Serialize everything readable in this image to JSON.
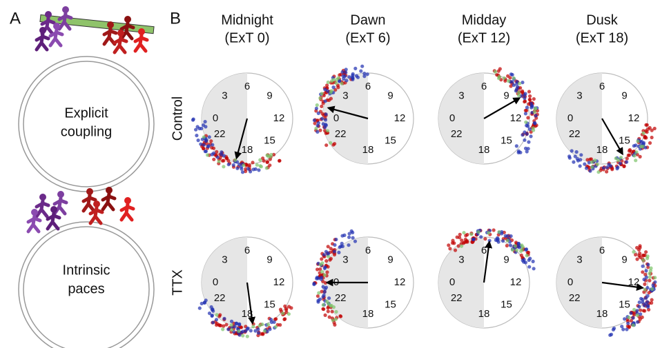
{
  "panel_a": {
    "label": "A",
    "top_lines": [
      "Explicit",
      "coupling"
    ],
    "bottom_lines": [
      "Intrinsic",
      "paces"
    ]
  },
  "panel_b": {
    "label": "B",
    "columns": [
      {
        "line1": "Midnight",
        "line2": "(ExT 0)"
      },
      {
        "line1": "Dawn",
        "line2": "(ExT 6)"
      },
      {
        "line1": "Midday",
        "line2": "(ExT 12)"
      },
      {
        "line1": "Dusk",
        "line2": "(ExT 18)"
      }
    ],
    "rows": [
      "Control",
      "TTX"
    ],
    "clock_labels": [
      3,
      6,
      9,
      12,
      15,
      18,
      22,
      0
    ],
    "arrow_hours": [
      [
        19,
        1,
        10,
        16
      ],
      [
        17.5,
        0,
        6.5,
        12.5
      ]
    ]
  }
}
